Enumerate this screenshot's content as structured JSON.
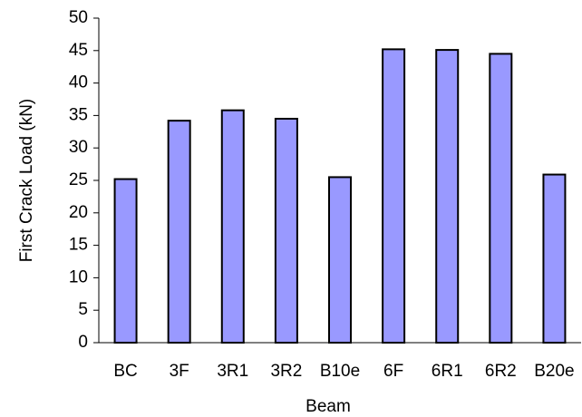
{
  "chart_data": {
    "type": "bar",
    "x_label": "Beam",
    "y_label": "First Crack Load (kN)",
    "categories": [
      "BC",
      "3F",
      "3R1",
      "3R2",
      "B10e",
      "6F",
      "6R1",
      "6R2",
      "B20e"
    ],
    "values": [
      25.2,
      34.2,
      35.8,
      34.5,
      25.5,
      45.2,
      45.1,
      44.5,
      25.9
    ],
    "color": "#9999ff",
    "ylim": [
      0,
      50
    ],
    "yticks": [
      0,
      5,
      10,
      15,
      20,
      25,
      30,
      35,
      40,
      45,
      50
    ],
    "grid": false
  }
}
